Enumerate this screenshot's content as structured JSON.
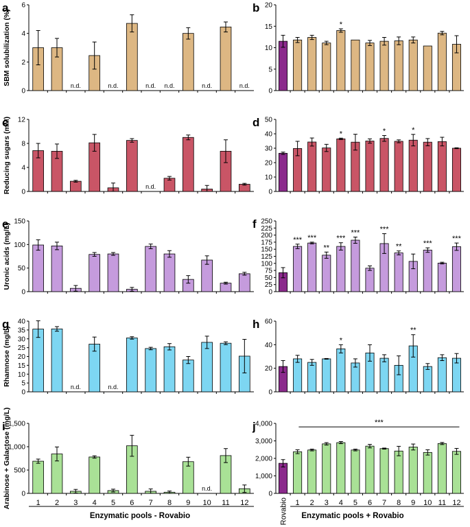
{
  "figure": {
    "x_categories": [
      "1",
      "2",
      "3",
      "4",
      "5",
      "6",
      "7",
      "8",
      "9",
      "10",
      "11",
      "12"
    ],
    "rovabio_label": "Rovabio",
    "left_group_label": "Enzymatic pools - Rovabio",
    "right_group_label": "Enzymatic pools + Rovabio",
    "nd_label": "n.d.",
    "colors": {
      "rovabio": "#8B2A8C",
      "a": "#DDB783",
      "c": "#C95566",
      "e": "#C59BDD",
      "g": "#7DD6F2",
      "i": "#A9E196"
    }
  },
  "chart_data": [
    {
      "panel": "a",
      "type": "bar",
      "ylabel": "SBM solubilization (%)",
      "ylim": [
        0,
        6
      ],
      "yticks": [
        "0",
        "2",
        "4",
        "6"
      ],
      "ytick_values": [
        0,
        2,
        4,
        6
      ],
      "categories": [
        "1",
        "2",
        "3",
        "4",
        "5",
        "6",
        "7",
        "8",
        "9",
        "10",
        "11",
        "12"
      ],
      "values": [
        3.0,
        3.0,
        null,
        2.45,
        null,
        4.7,
        null,
        null,
        4.0,
        null,
        4.45,
        null
      ],
      "errors": [
        1.2,
        0.65,
        null,
        0.95,
        null,
        0.6,
        null,
        null,
        0.4,
        null,
        0.35,
        null
      ],
      "nd": [
        false,
        false,
        true,
        false,
        true,
        false,
        true,
        true,
        false,
        true,
        false,
        true
      ]
    },
    {
      "panel": "b",
      "type": "bar",
      "ylim": [
        0,
        20
      ],
      "yticks": [
        "0",
        "5",
        "10",
        "15",
        "20"
      ],
      "ytick_values": [
        0,
        5,
        10,
        15,
        20
      ],
      "categories": [
        "Rovabio",
        "1",
        "2",
        "3",
        "4",
        "5",
        "6",
        "7",
        "8",
        "9",
        "10",
        "11",
        "12"
      ],
      "values": [
        11.5,
        11.8,
        12.4,
        11.1,
        14.0,
        11.8,
        11.1,
        11.5,
        11.6,
        11.8,
        10.4,
        13.4,
        10.8
      ],
      "errors": [
        1.4,
        0.6,
        0.5,
        0.4,
        0.4,
        0,
        0.6,
        0.9,
        0.9,
        0.7,
        0,
        0.4,
        2.0
      ],
      "significance": [
        "",
        "",
        "",
        "",
        "*",
        "",
        "",
        "",
        "",
        "",
        "",
        "",
        ""
      ]
    },
    {
      "panel": "c",
      "type": "bar",
      "ylabel": "Reducing sugars (mM)",
      "ylim": [
        0,
        12
      ],
      "yticks": [
        "0",
        "4",
        "8",
        "12"
      ],
      "ytick_values": [
        0,
        4,
        8,
        12
      ],
      "categories": [
        "1",
        "2",
        "3",
        "4",
        "5",
        "6",
        "7",
        "8",
        "9",
        "10",
        "11",
        "12"
      ],
      "values": [
        6.8,
        6.7,
        1.7,
        8.1,
        0.6,
        8.5,
        null,
        2.2,
        9.0,
        0.4,
        6.7,
        1.2
      ],
      "errors": [
        1.2,
        1.2,
        0.15,
        1.4,
        0.8,
        0.3,
        null,
        0.3,
        0.4,
        0.6,
        1.9,
        0.15
      ],
      "nd": [
        false,
        false,
        false,
        false,
        false,
        false,
        true,
        false,
        false,
        false,
        false,
        false
      ]
    },
    {
      "panel": "d",
      "type": "bar",
      "ylim": [
        0,
        50
      ],
      "yticks": [
        "0",
        "10",
        "20",
        "30",
        "40",
        "50"
      ],
      "ytick_values": [
        0,
        10,
        20,
        30,
        40,
        50
      ],
      "categories": [
        "Rovabio",
        "1",
        "2",
        "3",
        "4",
        "5",
        "6",
        "7",
        "8",
        "9",
        "10",
        "11",
        "12"
      ],
      "values": [
        26.5,
        29.8,
        34.3,
        30.2,
        36.5,
        34.2,
        35.0,
        36.8,
        34.8,
        35.6,
        34.2,
        34.6,
        30.0
      ],
      "errors": [
        0.8,
        5.0,
        2.8,
        2.5,
        0.5,
        5.5,
        1.5,
        2.0,
        1.0,
        4.0,
        2.5,
        3.0,
        0.3
      ],
      "significance": [
        "",
        "",
        "",
        "",
        "*",
        "",
        "",
        "*",
        "",
        "*",
        "",
        "",
        ""
      ]
    },
    {
      "panel": "e",
      "type": "bar",
      "ylabel": "Uronic acids (mg/L)",
      "ylim": [
        0,
        150
      ],
      "yticks": [
        "0",
        "50",
        "100",
        "150"
      ],
      "ytick_values": [
        0,
        50,
        100,
        150
      ],
      "categories": [
        "1",
        "2",
        "3",
        "4",
        "5",
        "6",
        "7",
        "8",
        "9",
        "10",
        "11",
        "12"
      ],
      "values": [
        99,
        97,
        7,
        79,
        80,
        5,
        96,
        80,
        26,
        67,
        18,
        38
      ],
      "errors": [
        11,
        8,
        6,
        4,
        3,
        4,
        5,
        7,
        8,
        9,
        2,
        3
      ]
    },
    {
      "panel": "f",
      "type": "bar",
      "ylim": [
        0,
        250
      ],
      "yticks": [
        "0",
        "25",
        "50",
        "75",
        "100",
        "125",
        "150",
        "175",
        "200",
        "225",
        "250"
      ],
      "ytick_values": [
        0,
        25,
        50,
        75,
        100,
        125,
        150,
        175,
        200,
        225,
        250
      ],
      "categories": [
        "Rovabio",
        "1",
        "2",
        "3",
        "4",
        "5",
        "6",
        "7",
        "8",
        "9",
        "10",
        "11",
        "12"
      ],
      "values": [
        67,
        160,
        172,
        129,
        160,
        182,
        83,
        170,
        137,
        107,
        147,
        101,
        159
      ],
      "errors": [
        18,
        8,
        3,
        11,
        13,
        11,
        8,
        35,
        7,
        26,
        8,
        3,
        13
      ],
      "significance": [
        "",
        "***",
        "***",
        "**",
        "***",
        "***",
        "",
        "***",
        "**",
        "",
        "***",
        "",
        "***"
      ]
    },
    {
      "panel": "g",
      "type": "bar",
      "ylabel": "Rhamnose (mg/L)",
      "ylim": [
        0,
        40
      ],
      "yticks": [
        "0",
        "5",
        "10",
        "15",
        "20",
        "25",
        "30",
        "35",
        "40"
      ],
      "ytick_values": [
        0,
        5,
        10,
        15,
        20,
        25,
        30,
        35,
        40
      ],
      "categories": [
        "1",
        "2",
        "3",
        "4",
        "5",
        "6",
        "7",
        "8",
        "9",
        "10",
        "11",
        "12"
      ],
      "values": [
        35.5,
        35.6,
        null,
        27,
        null,
        30.5,
        24.5,
        25.5,
        18,
        28,
        27.5,
        20.2
      ],
      "errors": [
        4.7,
        1.3,
        null,
        4,
        null,
        0.7,
        0.7,
        1.8,
        2,
        3.5,
        0.8,
        9.5
      ],
      "nd": [
        false,
        false,
        true,
        false,
        true,
        false,
        false,
        false,
        false,
        false,
        false,
        false
      ]
    },
    {
      "panel": "h",
      "type": "bar",
      "ylim": [
        0,
        60
      ],
      "yticks": [
        "0",
        "20",
        "40",
        "60"
      ],
      "ytick_values": [
        0,
        20,
        40,
        60
      ],
      "categories": [
        "Rovabio",
        "1",
        "2",
        "3",
        "4",
        "5",
        "6",
        "7",
        "8",
        "9",
        "10",
        "11",
        "12"
      ],
      "values": [
        21.5,
        28,
        25,
        28,
        36.5,
        24.5,
        33,
        28.5,
        22.5,
        39,
        21.5,
        29,
        28.5
      ],
      "errors": [
        5,
        3,
        2.5,
        0.3,
        3.5,
        3.5,
        7,
        3,
        8,
        9.5,
        2.5,
        2.5,
        4
      ],
      "significance": [
        "",
        "",
        "",
        "",
        "*",
        "",
        "",
        "",
        "",
        "**",
        "",
        "",
        ""
      ]
    },
    {
      "panel": "i",
      "type": "bar",
      "ylabel": "Arabinose + Galactose (mg/L)",
      "ylim": [
        0,
        1500
      ],
      "yticks": [
        "0",
        "500",
        "1,000",
        "1,500"
      ],
      "ytick_values": [
        0,
        500,
        1000,
        1500
      ],
      "categories": [
        "1",
        "2",
        "3",
        "4",
        "5",
        "6",
        "7",
        "8",
        "9",
        "10",
        "11",
        "12"
      ],
      "values": [
        690,
        845,
        45,
        780,
        60,
        1020,
        45,
        25,
        680,
        null,
        810,
        100
      ],
      "errors": [
        45,
        150,
        40,
        25,
        30,
        225,
        50,
        25,
        95,
        null,
        150,
        80
      ],
      "nd": [
        false,
        false,
        false,
        false,
        false,
        false,
        false,
        false,
        false,
        true,
        false,
        false
      ]
    },
    {
      "panel": "j",
      "type": "bar",
      "ylim": [
        0,
        4000
      ],
      "yticks": [
        "0",
        "1,000",
        "2,000",
        "3,000",
        "4,000"
      ],
      "ytick_values": [
        0,
        1000,
        2000,
        3000,
        4000
      ],
      "categories": [
        "Rovabio",
        "1",
        "2",
        "3",
        "4",
        "5",
        "6",
        "7",
        "8",
        "9",
        "10",
        "11",
        "12"
      ],
      "values": [
        1720,
        2380,
        2480,
        2830,
        2900,
        2480,
        2700,
        2560,
        2420,
        2650,
        2340,
        2850,
        2400
      ],
      "errors": [
        210,
        110,
        50,
        70,
        60,
        50,
        100,
        30,
        270,
        170,
        150,
        60,
        170
      ],
      "group_significance": "***"
    }
  ]
}
